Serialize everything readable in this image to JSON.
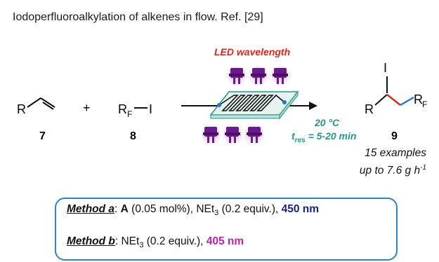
{
  "title": "Iodoperfluoroalkylation of alkenes in flow. Ref. [29]",
  "scheme": {
    "led_label": "LED wavelength",
    "reactant1": {
      "r_group": "R",
      "number": "7"
    },
    "plus": "+",
    "reactant2": {
      "rf": "R",
      "rf_sub": "F",
      "iodine": "I",
      "number": "8"
    },
    "conditions": {
      "temperature": "20 °C",
      "tres_prefix": "t",
      "tres_sub": "res",
      "tres_value": " = 5-20 min"
    },
    "product": {
      "iodine": "I",
      "r_group": "R",
      "rf": "R",
      "rf_sub": "F",
      "number": "9"
    },
    "examples_line1": "15 examples",
    "examples_line2_prefix": "up to 7.6 g h",
    "examples_line2_sup": "-1"
  },
  "methods": {
    "a": {
      "label": "Method a",
      "text_before": ": ",
      "catalyst": "A",
      "loading": " (0.05 mol%), NEt",
      "sub": "3",
      "base_rest": " (0.2 equiv.), ",
      "wavelength": "450 nm"
    },
    "b": {
      "label": "Method b",
      "text_before": ": NEt",
      "sub": "3",
      "base_rest": " (0.2 equiv.), ",
      "wavelength": "405 nm"
    }
  },
  "colors": {
    "led": "#6a1a8c",
    "led_glow": "#b36cd1",
    "reactor": "#1f9a8a",
    "red_bond": "#e8231c",
    "blue_bond": "#2e6fd8",
    "box_border": "#2e86bf"
  }
}
